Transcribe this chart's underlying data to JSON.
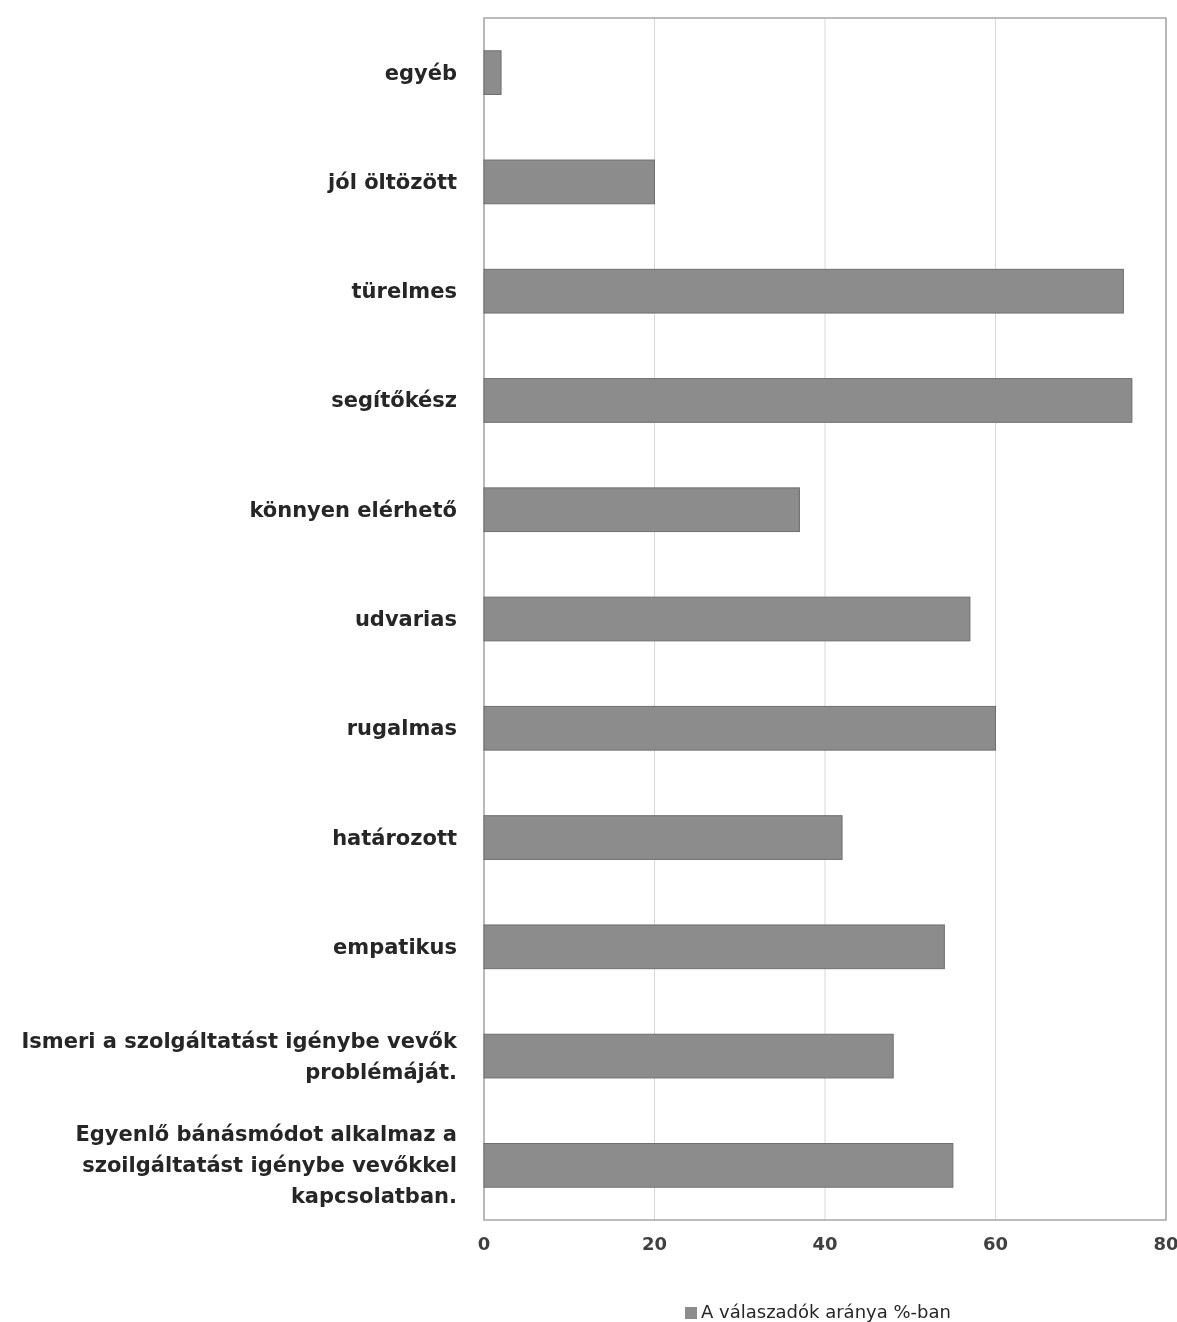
{
  "chart_data": {
    "type": "bar",
    "orientation": "horizontal",
    "categories": [
      "egyéb",
      "jól öltözött",
      "türelmes",
      "segítőkész",
      "könnyen elérhető",
      "udvarias",
      "rugalmas",
      "határozott",
      "empatikus",
      "Ismeri a szolgáltatást igénybe vevők problémáját.",
      "Egyenlő bánásmódot alkalmaz a szoilgáltatást igénybe vevőkkel kapcsolatban."
    ],
    "series": [
      {
        "name": "A válaszadók aránya %-ban",
        "color": "#8c8c8c",
        "values": [
          2,
          20,
          75,
          76,
          37,
          57,
          60,
          42,
          54,
          48,
          55
        ]
      }
    ],
    "xlim": [
      0,
      80
    ],
    "xticks": [
      0,
      20,
      40,
      60,
      80
    ],
    "grid": "x",
    "legend": "bottom"
  }
}
